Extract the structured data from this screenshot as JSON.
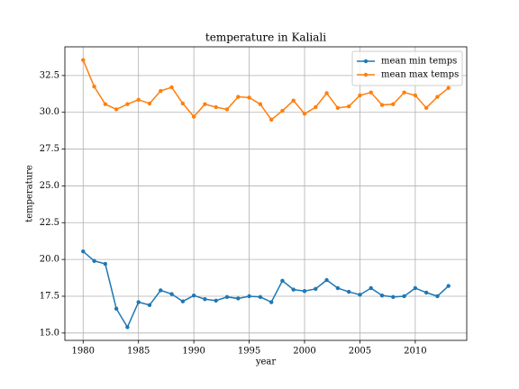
{
  "chart_data": {
    "type": "line",
    "title": "temperature in Kaliali",
    "xlabel": "year",
    "ylabel": "temperature",
    "x": [
      1980,
      1981,
      1982,
      1983,
      1984,
      1985,
      1986,
      1987,
      1988,
      1989,
      1990,
      1991,
      1992,
      1993,
      1994,
      1995,
      1996,
      1997,
      1998,
      1999,
      2000,
      2001,
      2002,
      2003,
      2004,
      2005,
      2006,
      2007,
      2008,
      2009,
      2010,
      2011,
      2012,
      2013
    ],
    "series": [
      {
        "name": "mean min temps",
        "color": "#1f77b4",
        "values": [
          20.55,
          19.9,
          19.7,
          16.65,
          15.4,
          17.1,
          16.9,
          17.9,
          17.65,
          17.15,
          17.55,
          17.3,
          17.2,
          17.45,
          17.35,
          17.5,
          17.45,
          17.1,
          18.55,
          17.95,
          17.85,
          18.0,
          18.6,
          18.05,
          17.8,
          17.6,
          18.05,
          17.55,
          17.45,
          17.5,
          18.05,
          17.75,
          17.5,
          18.2
        ]
      },
      {
        "name": "mean max temps",
        "color": "#ff7f0e",
        "values": [
          33.55,
          31.75,
          30.55,
          30.2,
          30.55,
          30.85,
          30.6,
          31.45,
          31.7,
          30.6,
          29.7,
          30.55,
          30.35,
          30.2,
          31.05,
          31.0,
          30.55,
          29.5,
          30.1,
          30.8,
          29.9,
          30.35,
          31.3,
          30.3,
          30.4,
          31.15,
          31.35,
          30.5,
          30.55,
          31.35,
          31.15,
          30.3,
          31.05,
          31.65
        ]
      }
    ],
    "xlim": [
      1978.35,
      2014.65
    ],
    "xticks": [
      1980,
      1985,
      1990,
      1995,
      2000,
      2005,
      2010
    ],
    "ylim": [
      14.5,
      34.45
    ],
    "yticks": [
      {
        "value": 15,
        "label": "15.0"
      },
      17.5,
      {
        "value": 20,
        "label": "20.0"
      },
      22.5,
      {
        "value": 25,
        "label": "25.0"
      },
      27.5,
      {
        "value": 30,
        "label": "30.0"
      },
      32.5
    ],
    "grid": true,
    "legend": "upper right"
  }
}
